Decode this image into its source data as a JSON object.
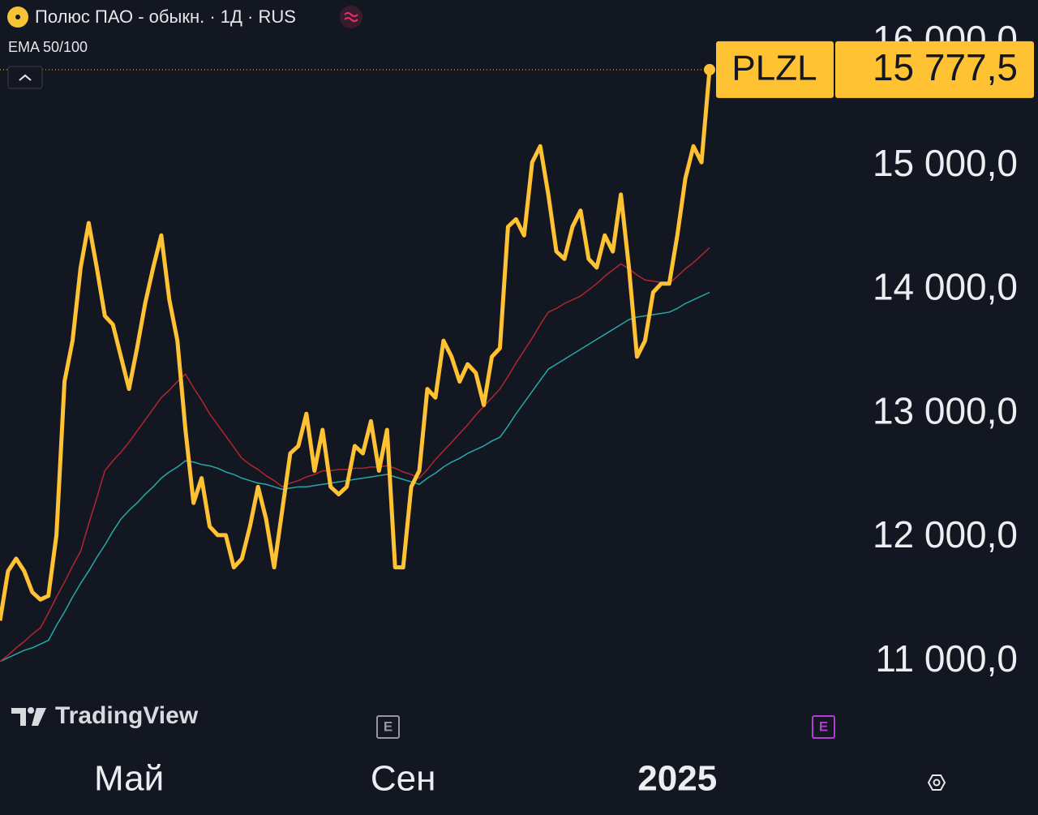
{
  "header": {
    "title": "Полюс ПАО - обыкн. · 1Д · RUS",
    "indicator": "EMA 50/100",
    "brand": "TradingView",
    "event_markers": [
      "E",
      "E"
    ]
  },
  "chart_data": {
    "type": "line",
    "categories": [
      null,
      null,
      null,
      null,
      null,
      null,
      null,
      null,
      null,
      null,
      null,
      null,
      null,
      null,
      null,
      null,
      "Май",
      null,
      null,
      null,
      null,
      null,
      null,
      null,
      null,
      null,
      null,
      null,
      null,
      null,
      null,
      null,
      null,
      null,
      null,
      null,
      null,
      null,
      null,
      null,
      null,
      null,
      null,
      null,
      null,
      null,
      null,
      null,
      null,
      null,
      "Сен",
      null,
      null,
      null,
      null,
      null,
      null,
      null,
      null,
      null,
      null,
      null,
      null,
      null,
      null,
      null,
      null,
      null,
      null,
      null,
      null,
      null,
      null,
      null,
      null,
      null,
      null,
      null,
      null,
      null,
      null,
      null,
      null,
      null,
      "2025",
      null,
      null,
      null,
      null
    ],
    "series": [
      {
        "name": "PLZL",
        "color": "#ffc233",
        "values": [
          11330,
          11730,
          11830,
          11730,
          11560,
          11500,
          11530,
          12020,
          13260,
          13590,
          14180,
          14540,
          14180,
          13790,
          13720,
          13460,
          13200,
          13530,
          13890,
          14180,
          14440,
          13920,
          13590,
          12870,
          12280,
          12480,
          12090,
          12020,
          12020,
          11760,
          11830,
          12090,
          12410,
          12150,
          11760,
          12220,
          12680,
          12740,
          13000,
          12540,
          12870,
          12410,
          12350,
          12410,
          12740,
          12680,
          12940,
          12540,
          12870,
          11760,
          11760,
          12410,
          12540,
          13200,
          13130,
          13590,
          13460,
          13260,
          13400,
          13330,
          13070,
          13460,
          13530,
          14510,
          14570,
          14440,
          15030,
          15160,
          14770,
          14310,
          14250,
          14510,
          14640,
          14250,
          14180,
          14440,
          14310,
          14770,
          14180,
          13460,
          13590,
          13980,
          14050,
          14050,
          14440,
          14900,
          15160,
          15030,
          15777.5
        ],
        "value_labels": [
          null,
          null,
          null,
          null,
          null,
          null,
          null,
          null,
          null,
          null,
          null,
          null,
          null,
          null,
          null,
          null,
          null,
          null,
          null,
          null,
          null,
          null,
          null,
          null,
          null,
          null,
          null,
          null,
          null,
          null,
          null,
          null,
          null,
          null,
          null,
          null,
          null,
          null,
          null,
          null,
          null,
          null,
          null,
          null,
          null,
          null,
          null,
          null,
          null,
          null,
          null,
          null,
          null,
          null,
          null,
          null,
          null,
          null,
          null,
          null,
          null,
          null,
          null,
          null,
          null,
          null,
          null,
          null,
          null,
          null,
          null,
          null,
          null,
          null,
          null,
          null,
          null,
          null,
          null,
          null,
          null,
          null,
          null,
          null,
          null,
          null,
          null,
          null,
          "15 777,5"
        ]
      },
      {
        "color": "#b2262f",
        "values": [
          11000,
          11050,
          11110,
          11160,
          11220,
          11270,
          11390,
          11520,
          11640,
          11770,
          11890,
          12110,
          12320,
          12540,
          12620,
          12690,
          12770,
          12860,
          12950,
          13040,
          13130,
          13190,
          13260,
          13320,
          13210,
          13110,
          13000,
          12910,
          12820,
          12730,
          12640,
          12590,
          12550,
          12500,
          12460,
          12410,
          12440,
          12460,
          12490,
          12510,
          12540,
          12540,
          12550,
          12550,
          12560,
          12560,
          12570,
          12570,
          12580,
          12560,
          12530,
          12510,
          12480,
          12550,
          12630,
          12700,
          12770,
          12840,
          12910,
          12990,
          13060,
          13130,
          13200,
          13300,
          13410,
          13510,
          13610,
          13720,
          13820,
          13850,
          13890,
          13920,
          13950,
          14000,
          14050,
          14110,
          14160,
          14210,
          14170,
          14120,
          14080,
          14070,
          14060,
          14050,
          14110,
          14170,
          14220,
          14280,
          14340
        ]
      },
      {
        "color": "#26a9a6",
        "values": [
          11000,
          11030,
          11060,
          11090,
          11110,
          11140,
          11170,
          11290,
          11400,
          11520,
          11630,
          11730,
          11840,
          11940,
          12050,
          12150,
          12220,
          12280,
          12350,
          12410,
          12480,
          12530,
          12570,
          12620,
          12610,
          12590,
          12580,
          12560,
          12530,
          12510,
          12480,
          12460,
          12440,
          12430,
          12410,
          12390,
          12400,
          12410,
          12410,
          12420,
          12430,
          12440,
          12450,
          12460,
          12470,
          12480,
          12490,
          12500,
          12510,
          12490,
          12470,
          12450,
          12430,
          12480,
          12520,
          12570,
          12610,
          12640,
          12680,
          12710,
          12740,
          12780,
          12810,
          12900,
          13000,
          13090,
          13180,
          13270,
          13360,
          13400,
          13440,
          13480,
          13520,
          13560,
          13600,
          13640,
          13680,
          13720,
          13760,
          13780,
          13790,
          13800,
          13810,
          13820,
          13850,
          13890,
          13920,
          13950,
          13980
        ]
      }
    ],
    "ylim": [
      10710,
      16340
    ],
    "yticks": [
      {
        "value": 11000,
        "label": "11 000,0"
      },
      {
        "value": 12000,
        "label": "12 000,0"
      },
      {
        "value": 13000,
        "label": "13 000,0"
      },
      {
        "value": 14000,
        "label": "14 000,0"
      },
      {
        "value": 15000,
        "label": "15 000,0"
      },
      {
        "value": 16000,
        "label": "16 000,0"
      }
    ],
    "grid": false
  }
}
